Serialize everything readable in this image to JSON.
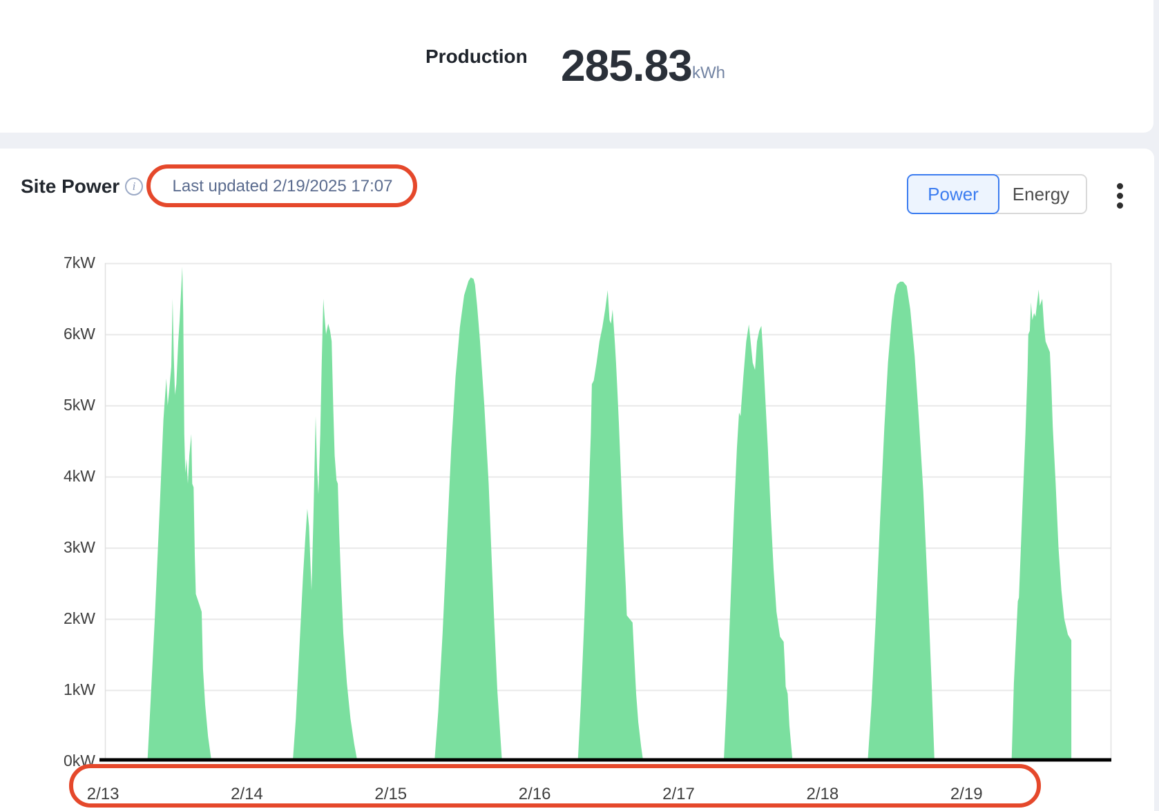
{
  "header": {
    "production_label": "Production",
    "production_value": "285.83",
    "production_unit": "kWh"
  },
  "site_power": {
    "title": "Site Power",
    "last_updated": "Last updated 2/19/2025 17:07",
    "toggle": {
      "options": [
        "Power",
        "Energy"
      ],
      "selected": "Power"
    },
    "menu_icon": "kebab-menu-icon",
    "info_icon": "info-circle-icon"
  },
  "icons": {
    "info_glyph": "i"
  },
  "colors": {
    "accent_blue": "#3b7cf0",
    "annotation_red": "#e5482b",
    "area_green": "#7bdf9f",
    "grid": "#e8e8e8",
    "plot_border": "#e0e0e0",
    "baseline": "#000000",
    "page_bg": "#eef0f5",
    "card_bg": "#ffffff"
  },
  "chart_data": {
    "type": "area",
    "title": "Site Power",
    "unit": "kW",
    "x_domain": [
      0.014,
      7.007
    ],
    "y_domain": [
      0,
      7
    ],
    "grid": true,
    "legend": false,
    "y_ticks": [
      {
        "v": 0,
        "label": "0kW"
      },
      {
        "v": 1,
        "label": "1kW"
      },
      {
        "v": 2,
        "label": "2kW"
      },
      {
        "v": 3,
        "label": "3kW"
      },
      {
        "v": 4,
        "label": "4kW"
      },
      {
        "v": 5,
        "label": "5kW"
      },
      {
        "v": 6,
        "label": "6kW"
      },
      {
        "v": 7,
        "label": "7kW"
      }
    ],
    "x_ticks": [
      {
        "t": 0,
        "label": "2/13"
      },
      {
        "t": 1,
        "label": "2/14"
      },
      {
        "t": 2,
        "label": "2/15"
      },
      {
        "t": 3,
        "label": "2/16"
      },
      {
        "t": 4,
        "label": "2/17"
      },
      {
        "t": 5,
        "label": "2/18"
      },
      {
        "t": 6,
        "label": "2/19"
      }
    ],
    "days": [
      {
        "date": "2/13",
        "peak_kw": 6.95,
        "points": [
          [
            0.309,
            0
          ],
          [
            0.33,
            0.8
          ],
          [
            0.36,
            2.0
          ],
          [
            0.395,
            3.6
          ],
          [
            0.42,
            4.8
          ],
          [
            0.44,
            5.38
          ],
          [
            0.45,
            5.0
          ],
          [
            0.46,
            5.2
          ],
          [
            0.475,
            5.55
          ],
          [
            0.484,
            6.5
          ],
          [
            0.492,
            5.7
          ],
          [
            0.5,
            5.15
          ],
          [
            0.51,
            5.3
          ],
          [
            0.523,
            5.9
          ],
          [
            0.533,
            6.2
          ],
          [
            0.551,
            6.95
          ],
          [
            0.558,
            6.3
          ],
          [
            0.565,
            4.6
          ],
          [
            0.572,
            4.05
          ],
          [
            0.58,
            4.25
          ],
          [
            0.59,
            3.9
          ],
          [
            0.6,
            4.3
          ],
          [
            0.614,
            4.6
          ],
          [
            0.62,
            3.9
          ],
          [
            0.63,
            3.85
          ],
          [
            0.638,
            2.9
          ],
          [
            0.645,
            2.35
          ],
          [
            0.67,
            2.2
          ],
          [
            0.686,
            2.1
          ],
          [
            0.695,
            1.3
          ],
          [
            0.71,
            0.8
          ],
          [
            0.73,
            0.35
          ],
          [
            0.754,
            0
          ]
        ]
      },
      {
        "date": "2/14",
        "peak_kw": 6.5,
        "points": [
          [
            1.319,
            0
          ],
          [
            1.34,
            0.6
          ],
          [
            1.365,
            1.6
          ],
          [
            1.39,
            2.6
          ],
          [
            1.405,
            3.1
          ],
          [
            1.42,
            3.55
          ],
          [
            1.432,
            3.3
          ],
          [
            1.449,
            2.4
          ],
          [
            1.462,
            3.4
          ],
          [
            1.478,
            4.85
          ],
          [
            1.488,
            4.1
          ],
          [
            1.497,
            3.75
          ],
          [
            1.51,
            4.6
          ],
          [
            1.52,
            5.6
          ],
          [
            1.531,
            6.5
          ],
          [
            1.54,
            6.25
          ],
          [
            1.55,
            6.0
          ],
          [
            1.565,
            6.15
          ],
          [
            1.578,
            6.05
          ],
          [
            1.589,
            5.9
          ],
          [
            1.6,
            5.0
          ],
          [
            1.61,
            4.3
          ],
          [
            1.623,
            3.95
          ],
          [
            1.632,
            3.9
          ],
          [
            1.642,
            3.2
          ],
          [
            1.655,
            2.5
          ],
          [
            1.67,
            1.8
          ],
          [
            1.695,
            1.1
          ],
          [
            1.72,
            0.6
          ],
          [
            1.745,
            0.25
          ],
          [
            1.768,
            0
          ]
        ]
      },
      {
        "date": "2/15",
        "peak_kw": 6.8,
        "points": [
          [
            2.304,
            0
          ],
          [
            2.33,
            0.7
          ],
          [
            2.36,
            1.8
          ],
          [
            2.39,
            3.1
          ],
          [
            2.42,
            4.4
          ],
          [
            2.45,
            5.4
          ],
          [
            2.48,
            6.1
          ],
          [
            2.51,
            6.55
          ],
          [
            2.54,
            6.75
          ],
          [
            2.556,
            6.8
          ],
          [
            2.575,
            6.78
          ],
          [
            2.585,
            6.7
          ],
          [
            2.6,
            6.4
          ],
          [
            2.62,
            5.9
          ],
          [
            2.65,
            5.0
          ],
          [
            2.68,
            3.9
          ],
          [
            2.7,
            2.9
          ],
          [
            2.72,
            1.9
          ],
          [
            2.74,
            1.0
          ],
          [
            2.76,
            0.4
          ],
          [
            2.773,
            0
          ]
        ]
      },
      {
        "date": "2/16",
        "peak_kw": 6.62,
        "points": [
          [
            3.3,
            0
          ],
          [
            3.32,
            0.8
          ],
          [
            3.345,
            2.0
          ],
          [
            3.37,
            3.4
          ],
          [
            3.39,
            4.6
          ],
          [
            3.397,
            5.3
          ],
          [
            3.41,
            5.35
          ],
          [
            3.43,
            5.6
          ],
          [
            3.45,
            5.9
          ],
          [
            3.47,
            6.1
          ],
          [
            3.49,
            6.35
          ],
          [
            3.507,
            6.62
          ],
          [
            3.52,
            6.2
          ],
          [
            3.53,
            6.15
          ],
          [
            3.541,
            6.35
          ],
          [
            3.55,
            6.1
          ],
          [
            3.558,
            5.85
          ],
          [
            3.565,
            5.6
          ],
          [
            3.575,
            5.2
          ],
          [
            3.585,
            4.75
          ],
          [
            3.6,
            4.0
          ],
          [
            3.615,
            3.2
          ],
          [
            3.633,
            2.45
          ],
          [
            3.64,
            2.05
          ],
          [
            3.68,
            1.95
          ],
          [
            3.691,
            1.5
          ],
          [
            3.705,
            0.95
          ],
          [
            3.72,
            0.55
          ],
          [
            3.74,
            0.2
          ],
          [
            3.754,
            0
          ]
        ]
      },
      {
        "date": "2/17",
        "peak_kw": 6.14,
        "points": [
          [
            4.314,
            0
          ],
          [
            4.335,
            0.9
          ],
          [
            4.36,
            2.2
          ],
          [
            4.385,
            3.5
          ],
          [
            4.405,
            4.4
          ],
          [
            4.42,
            4.9
          ],
          [
            4.43,
            4.85
          ],
          [
            4.45,
            5.4
          ],
          [
            4.47,
            5.9
          ],
          [
            4.488,
            6.14
          ],
          [
            4.5,
            5.9
          ],
          [
            4.515,
            5.6
          ],
          [
            4.531,
            5.5
          ],
          [
            4.545,
            5.9
          ],
          [
            4.56,
            6.05
          ],
          [
            4.575,
            6.12
          ],
          [
            4.585,
            5.8
          ],
          [
            4.6,
            5.2
          ],
          [
            4.62,
            4.4
          ],
          [
            4.64,
            3.5
          ],
          [
            4.66,
            2.7
          ],
          [
            4.68,
            2.1
          ],
          [
            4.705,
            1.75
          ],
          [
            4.73,
            1.68
          ],
          [
            4.739,
            1.3
          ],
          [
            4.744,
            1.05
          ],
          [
            4.758,
            0.95
          ],
          [
            4.77,
            0.5
          ],
          [
            4.792,
            0
          ]
        ]
      },
      {
        "date": "2/18",
        "peak_kw": 6.74,
        "points": [
          [
            5.314,
            0
          ],
          [
            5.34,
            0.8
          ],
          [
            5.37,
            2.0
          ],
          [
            5.4,
            3.4
          ],
          [
            5.43,
            4.7
          ],
          [
            5.455,
            5.6
          ],
          [
            5.48,
            6.2
          ],
          [
            5.5,
            6.55
          ],
          [
            5.517,
            6.7
          ],
          [
            5.54,
            6.74
          ],
          [
            5.56,
            6.74
          ],
          [
            5.585,
            6.68
          ],
          [
            5.61,
            6.35
          ],
          [
            5.64,
            5.7
          ],
          [
            5.67,
            4.8
          ],
          [
            5.7,
            3.8
          ],
          [
            5.72,
            2.9
          ],
          [
            5.74,
            2.0
          ],
          [
            5.76,
            1.0
          ],
          [
            5.778,
            0
          ]
        ]
      },
      {
        "date": "2/19",
        "peak_kw": 6.63,
        "points": [
          [
            6.314,
            0
          ],
          [
            6.33,
            1.1
          ],
          [
            6.357,
            2.25
          ],
          [
            6.365,
            2.3
          ],
          [
            6.39,
            3.6
          ],
          [
            6.41,
            4.6
          ],
          [
            6.425,
            5.5
          ],
          [
            6.43,
            6.0
          ],
          [
            6.44,
            6.05
          ],
          [
            6.449,
            6.45
          ],
          [
            6.458,
            6.2
          ],
          [
            6.47,
            6.3
          ],
          [
            6.48,
            6.25
          ],
          [
            6.502,
            6.63
          ],
          [
            6.51,
            6.4
          ],
          [
            6.527,
            6.5
          ],
          [
            6.54,
            6.1
          ],
          [
            6.55,
            5.9
          ],
          [
            6.58,
            5.75
          ],
          [
            6.59,
            5.3
          ],
          [
            6.6,
            4.7
          ],
          [
            6.62,
            3.9
          ],
          [
            6.64,
            3.0
          ],
          [
            6.66,
            2.4
          ],
          [
            6.68,
            2.0
          ],
          [
            6.705,
            1.78
          ],
          [
            6.729,
            1.7
          ],
          [
            6.729,
            0
          ]
        ]
      }
    ]
  }
}
